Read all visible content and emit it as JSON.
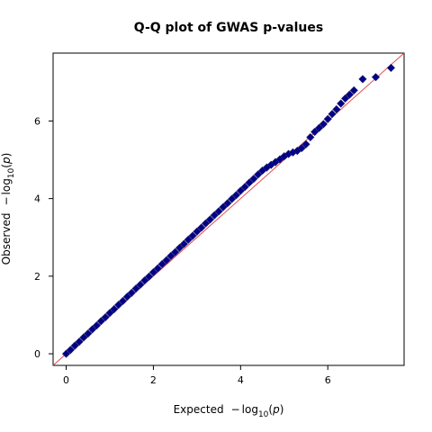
{
  "chart_data": {
    "type": "scatter",
    "title": "Q-Q plot of GWAS p-values",
    "xlabel": {
      "prefix": "Expected",
      "minus": "−",
      "log": "log",
      "sub": "10",
      "open": "(",
      "var": "p",
      "close": ")"
    },
    "ylabel": {
      "prefix": "Observed",
      "minus": "−",
      "log": "log",
      "sub": "10",
      "open": "(",
      "var": "p",
      "close": ")"
    },
    "xlim": [
      -0.3,
      7.75
    ],
    "ylim": [
      -0.3,
      7.75
    ],
    "xticks": [
      {
        "value": 0,
        "label": "0"
      },
      {
        "value": 2,
        "label": "2"
      },
      {
        "value": 4,
        "label": "4"
      },
      {
        "value": 6,
        "label": "6"
      }
    ],
    "yticks": [
      {
        "value": 0,
        "label": "0"
      },
      {
        "value": 2,
        "label": "2"
      },
      {
        "value": 4,
        "label": "4"
      },
      {
        "value": 6,
        "label": "6"
      }
    ],
    "grid": false,
    "reference_line": {
      "slope": 1,
      "intercept": 0,
      "color": "#e0474c"
    },
    "series": [
      {
        "marker": "diamond",
        "color": "#00008b",
        "edge_color": "#1a1a6e",
        "points": [
          [
            0.0,
            0.0
          ],
          [
            0.1,
            0.1
          ],
          [
            0.2,
            0.21
          ],
          [
            0.3,
            0.31
          ],
          [
            0.4,
            0.42
          ],
          [
            0.5,
            0.52
          ],
          [
            0.6,
            0.63
          ],
          [
            0.7,
            0.73
          ],
          [
            0.8,
            0.84
          ],
          [
            0.9,
            0.94
          ],
          [
            1.0,
            1.05
          ],
          [
            1.1,
            1.15
          ],
          [
            1.2,
            1.26
          ],
          [
            1.3,
            1.36
          ],
          [
            1.4,
            1.47
          ],
          [
            1.5,
            1.57
          ],
          [
            1.6,
            1.68
          ],
          [
            1.7,
            1.78
          ],
          [
            1.8,
            1.89
          ],
          [
            1.9,
            1.99
          ],
          [
            2.0,
            2.1
          ],
          [
            2.1,
            2.2
          ],
          [
            2.2,
            2.31
          ],
          [
            2.3,
            2.41
          ],
          [
            2.4,
            2.52
          ],
          [
            2.5,
            2.62
          ],
          [
            2.6,
            2.73
          ],
          [
            2.7,
            2.83
          ],
          [
            2.8,
            2.94
          ],
          [
            2.9,
            3.04
          ],
          [
            3.0,
            3.15
          ],
          [
            3.1,
            3.25
          ],
          [
            3.2,
            3.36
          ],
          [
            3.3,
            3.46
          ],
          [
            3.4,
            3.57
          ],
          [
            3.5,
            3.67
          ],
          [
            3.6,
            3.78
          ],
          [
            3.7,
            3.88
          ],
          [
            3.8,
            3.99
          ],
          [
            3.9,
            4.09
          ],
          [
            4.0,
            4.2
          ],
          [
            4.1,
            4.3
          ],
          [
            4.2,
            4.41
          ],
          [
            4.3,
            4.51
          ],
          [
            4.4,
            4.62
          ],
          [
            4.5,
            4.72
          ],
          [
            4.6,
            4.8
          ],
          [
            4.7,
            4.87
          ],
          [
            4.8,
            4.94
          ],
          [
            4.9,
            5.01
          ],
          [
            5.0,
            5.09
          ],
          [
            5.1,
            5.15
          ],
          [
            5.2,
            5.19
          ],
          [
            5.3,
            5.23
          ],
          [
            5.4,
            5.3
          ],
          [
            5.5,
            5.4
          ],
          [
            5.6,
            5.58
          ],
          [
            5.7,
            5.72
          ],
          [
            5.8,
            5.82
          ],
          [
            5.9,
            5.92
          ],
          [
            6.0,
            6.05
          ],
          [
            6.1,
            6.18
          ],
          [
            6.2,
            6.3
          ],
          [
            6.3,
            6.45
          ],
          [
            6.4,
            6.58
          ],
          [
            6.5,
            6.68
          ],
          [
            6.6,
            6.79
          ],
          [
            6.8,
            7.08
          ],
          [
            7.1,
            7.13
          ],
          [
            7.45,
            7.37
          ]
        ]
      }
    ]
  }
}
